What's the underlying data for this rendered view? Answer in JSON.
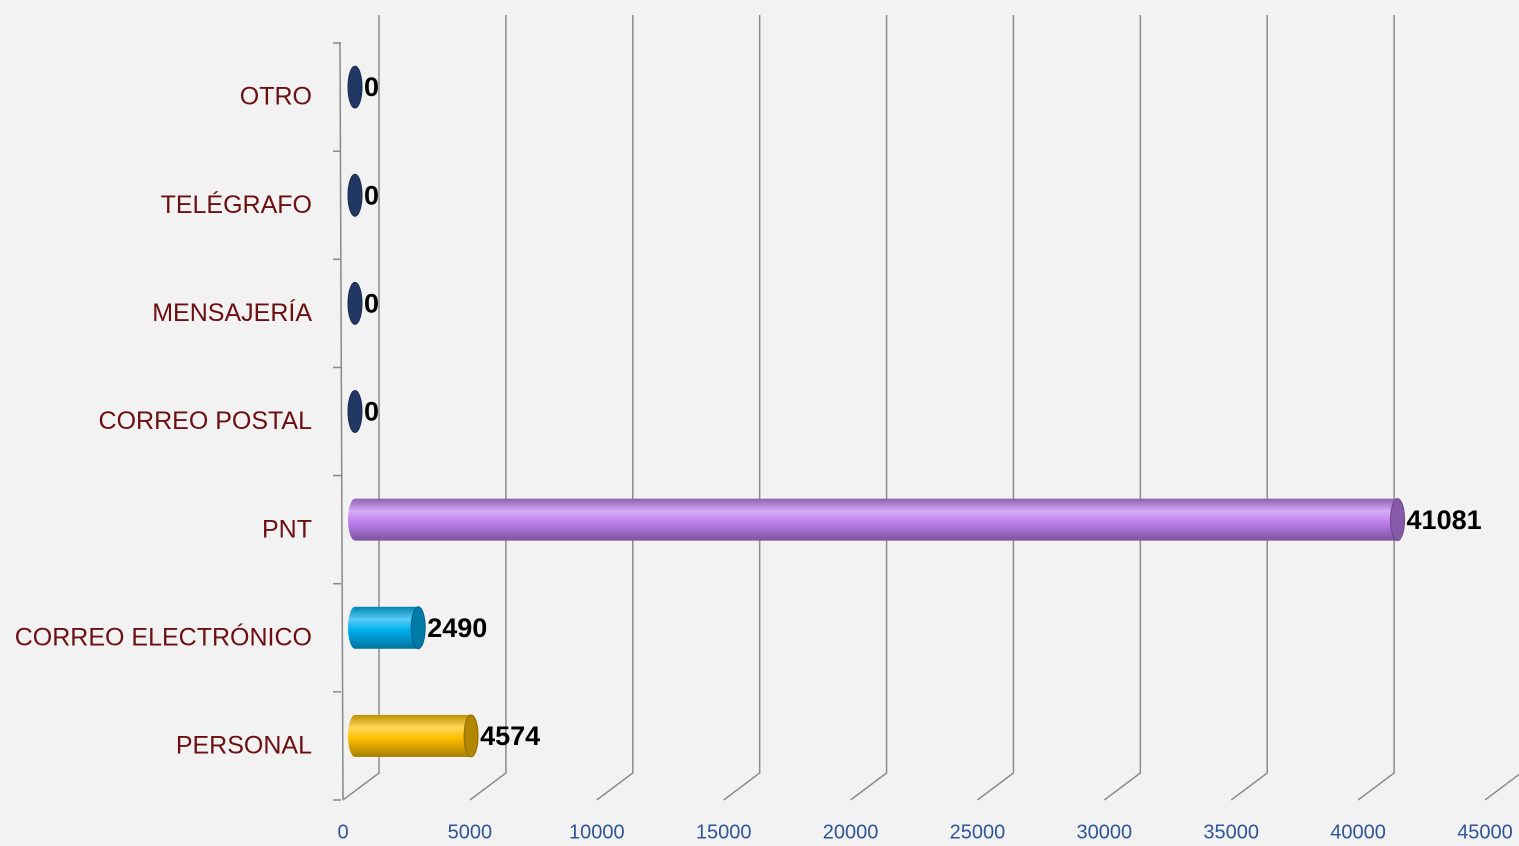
{
  "chart_data": {
    "type": "bar",
    "orientation": "horizontal",
    "categories": [
      "PERSONAL",
      "CORREO ELECTRÓNICO",
      "PNT",
      "CORREO POSTAL",
      "MENSAJERÍA",
      "TELÉGRAFO",
      "OTRO"
    ],
    "values": [
      4574,
      2490,
      41081,
      0,
      0,
      0,
      0
    ],
    "colors": [
      "#ffc000",
      "#00b0f0",
      "#c080f0",
      "#2f4f8f",
      "#2f4f8f",
      "#2f4f8f",
      "#2f4f8f"
    ],
    "xlim": [
      0,
      45000
    ],
    "xticks": [
      0,
      5000,
      10000,
      15000,
      20000,
      25000,
      30000,
      35000,
      40000,
      45000
    ],
    "grid": true
  }
}
